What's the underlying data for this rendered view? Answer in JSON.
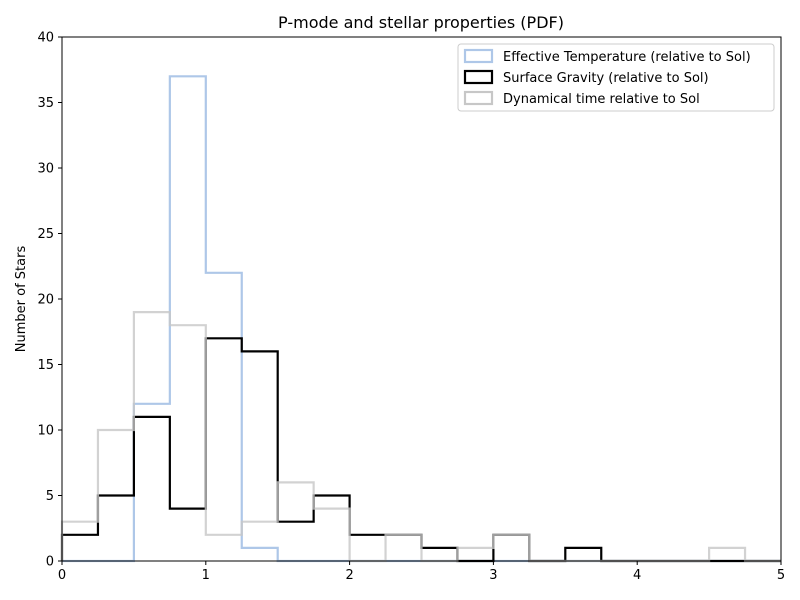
{
  "chart_data": {
    "type": "histogram",
    "title": "P-mode and stellar properties (PDF)",
    "xlabel": "",
    "ylabel": "Number of Stars",
    "xlim": [
      0,
      5
    ],
    "ylim": [
      0,
      40
    ],
    "x_ticks": [
      "0",
      "1",
      "2",
      "3",
      "4",
      "5"
    ],
    "y_ticks": [
      "0",
      "5",
      "10",
      "15",
      "20",
      "25",
      "30",
      "35",
      "40"
    ],
    "bin_edges": [
      0,
      0.25,
      0.5,
      0.75,
      1.0,
      1.25,
      1.5,
      1.75,
      2.0,
      2.25,
      2.5,
      2.75,
      3.0,
      3.25,
      3.5,
      3.75,
      4.0,
      4.25,
      4.5,
      4.75,
      5.0
    ],
    "grid": false,
    "legend_position": "top-right",
    "series": [
      {
        "name": "Effective Temperature (relative to Sol)",
        "color": "#aec7e8",
        "values": [
          0,
          0,
          12,
          37,
          22,
          1,
          0,
          0,
          0,
          0,
          0,
          0,
          0,
          0,
          0,
          0,
          0,
          0,
          0,
          0
        ]
      },
      {
        "name": "Surface Gravity (relative to Sol)",
        "color": "#000000",
        "values": [
          2,
          5,
          11,
          4,
          17,
          16,
          3,
          5,
          2,
          2,
          1,
          0,
          2,
          0,
          1,
          0,
          0,
          0,
          0,
          0
        ]
      },
      {
        "name": "Dynamical time relative to Sol",
        "color": "#c7c7c7",
        "values": [
          3,
          10,
          19,
          18,
          2,
          3,
          6,
          4,
          0,
          2,
          0,
          1,
          2,
          0,
          0,
          0,
          0,
          0,
          1,
          0
        ]
      }
    ]
  }
}
